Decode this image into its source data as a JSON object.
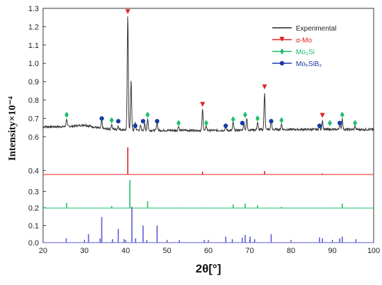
{
  "chart_data": {
    "type": "line",
    "xlabel": "2θ[°]",
    "ylabel": "Intensity×10⁻⁴",
    "xlim": [
      20,
      100
    ],
    "x_ticks": [
      "20",
      "30",
      "40",
      "50",
      "60",
      "70",
      "80",
      "90",
      "100"
    ],
    "panels": {
      "top": {
        "ylim": [
          0.55,
          1.3
        ],
        "ticks": [
          "0.6",
          "0.7",
          "0.8",
          "0.9",
          "1.0",
          "1.1",
          "1.2",
          "1.3"
        ]
      },
      "red": {
        "ylim": [
          0.38,
          0.5
        ],
        "ticks": [
          "0.4"
        ]
      },
      "green": {
        "ylim": [
          0.195,
          0.4
        ],
        "ticks": [
          "0.2",
          "0.3"
        ]
      },
      "blue": {
        "ylim": [
          0.0,
          0.2
        ],
        "ticks": [
          "0.0",
          "0.1"
        ]
      }
    },
    "legend": [
      {
        "label": "Experimental",
        "color": "#222222",
        "marker": "line"
      },
      {
        "label": "α-Mo",
        "color": "#e02020",
        "marker": "triangle"
      },
      {
        "label": "Mo₃Si",
        "color": "#1fbf6a",
        "marker": "diamond"
      },
      {
        "label": "Mo₅SiB₂",
        "color": "#1a3aa8",
        "marker": "circle"
      }
    ],
    "experimental_baseline": [
      [
        20,
        0.655
      ],
      [
        25,
        0.655
      ],
      [
        28,
        0.66
      ],
      [
        30,
        0.665
      ],
      [
        32,
        0.655
      ],
      [
        34,
        0.645
      ],
      [
        38,
        0.64
      ],
      [
        45,
        0.635
      ],
      [
        55,
        0.635
      ],
      [
        65,
        0.635
      ],
      [
        75,
        0.64
      ],
      [
        85,
        0.64
      ],
      [
        95,
        0.64
      ],
      [
        100,
        0.64
      ]
    ],
    "experimental_peaks": [
      [
        25.7,
        0.7
      ],
      [
        34.2,
        0.69
      ],
      [
        36.6,
        0.67
      ],
      [
        38.2,
        0.66
      ],
      [
        40.5,
        1.26
      ],
      [
        41.3,
        0.91
      ],
      [
        42.3,
        0.68
      ],
      [
        43.6,
        0.66
      ],
      [
        44.6,
        0.67
      ],
      [
        45.3,
        0.7
      ],
      [
        47.6,
        0.68
      ],
      [
        52.8,
        0.66
      ],
      [
        58.6,
        0.75
      ],
      [
        59.5,
        0.66
      ],
      [
        64.2,
        0.66
      ],
      [
        66.0,
        0.68
      ],
      [
        68.6,
        0.68
      ],
      [
        69.3,
        0.7
      ],
      [
        71.9,
        0.68
      ],
      [
        73.6,
        0.84
      ],
      [
        75.2,
        0.69
      ],
      [
        77.7,
        0.67
      ],
      [
        86.9,
        0.66
      ],
      [
        87.6,
        0.69
      ],
      [
        91.8,
        0.67
      ],
      [
        92.4,
        0.7
      ],
      [
        95.5,
        0.66
      ]
    ],
    "markers": {
      "alpha_mo": [
        [
          40.5,
          1.28
        ],
        [
          58.6,
          0.775
        ],
        [
          73.6,
          0.87
        ],
        [
          87.6,
          0.715
        ]
      ],
      "mo3si": [
        [
          25.7,
          0.72
        ],
        [
          36.6,
          0.69
        ],
        [
          45.3,
          0.72
        ],
        [
          52.8,
          0.675
        ],
        [
          59.5,
          0.675
        ],
        [
          66.0,
          0.695
        ],
        [
          68.9,
          0.72
        ],
        [
          71.9,
          0.7
        ],
        [
          77.7,
          0.69
        ],
        [
          89.4,
          0.675
        ],
        [
          92.4,
          0.72
        ],
        [
          95.5,
          0.675
        ]
      ],
      "mo5sib2": [
        [
          34.2,
          0.7
        ],
        [
          38.2,
          0.685
        ],
        [
          42.3,
          0.66
        ],
        [
          44.2,
          0.685
        ],
        [
          47.6,
          0.685
        ],
        [
          64.2,
          0.66
        ],
        [
          68.2,
          0.675
        ],
        [
          75.2,
          0.685
        ],
        [
          86.9,
          0.66
        ],
        [
          91.8,
          0.675
        ]
      ]
    },
    "reference_alpha_mo": [
      [
        40.5,
        0.5
      ],
      [
        58.6,
        0.395
      ],
      [
        73.6,
        0.398
      ],
      [
        87.6,
        0.387
      ]
    ],
    "reference_mo3si": [
      [
        25.7,
        0.23
      ],
      [
        36.6,
        0.21
      ],
      [
        41.0,
        0.37
      ],
      [
        45.3,
        0.24
      ],
      [
        52.8,
        0.2
      ],
      [
        59.5,
        0.2
      ],
      [
        66.0,
        0.22
      ],
      [
        68.9,
        0.225
      ],
      [
        71.9,
        0.215
      ],
      [
        77.7,
        0.205
      ],
      [
        89.4,
        0.2
      ],
      [
        92.4,
        0.225
      ],
      [
        95.5,
        0.2
      ]
    ],
    "reference_mo5sib2": [
      [
        25.6,
        0.025
      ],
      [
        31.0,
        0.05
      ],
      [
        33.8,
        0.025
      ],
      [
        34.2,
        0.15
      ],
      [
        36.8,
        0.02
      ],
      [
        38.2,
        0.08
      ],
      [
        39.6,
        0.02
      ],
      [
        41.5,
        0.21
      ],
      [
        42.4,
        0.025
      ],
      [
        44.2,
        0.1
      ],
      [
        45.1,
        0.015
      ],
      [
        47.6,
        0.1
      ],
      [
        53.0,
        0.015
      ],
      [
        59.0,
        0.015
      ],
      [
        64.2,
        0.035
      ],
      [
        65.8,
        0.02
      ],
      [
        68.2,
        0.03
      ],
      [
        68.9,
        0.045
      ],
      [
        70.1,
        0.035
      ],
      [
        71.2,
        0.02
      ],
      [
        75.2,
        0.05
      ],
      [
        86.9,
        0.03
      ],
      [
        87.6,
        0.025
      ],
      [
        91.8,
        0.025
      ],
      [
        92.4,
        0.035
      ],
      [
        95.7,
        0.02
      ]
    ]
  }
}
